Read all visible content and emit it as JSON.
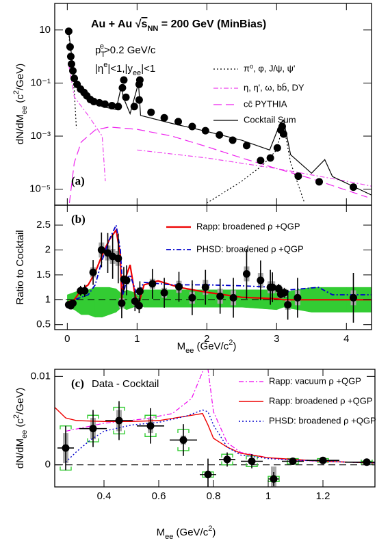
{
  "chart_data": [
    {
      "type": "scatter",
      "panel_label": "(a)",
      "title": [
        "Au + Au  √",
        "s",
        "NN",
        " = 200 GeV (MinBias)"
      ],
      "annotations": [
        [
          "p",
          "T",
          "e",
          ">0.2 GeV/c"
        ],
        [
          "|η",
          "e",
          "|<1,|y",
          "ee",
          "|<1"
        ]
      ],
      "ylabel": [
        "dN/dM",
        "ee",
        " (c",
        "2",
        "/GeV)"
      ],
      "xlim": [
        -0.18,
        4.36
      ],
      "xticks": [
        0,
        1,
        2,
        3,
        4
      ],
      "show_xtick_labels": false,
      "ylim": [
        2.5e-06,
        100
      ],
      "ylog": true,
      "yticks": [
        10,
        {
          "value": 0.1,
          "label": "10⁻¹"
        },
        {
          "value": 0.001,
          "label": "10⁻³"
        },
        {
          "value": 1e-05,
          "label": "10⁻⁵"
        }
      ],
      "series": [
        {
          "kind": "points",
          "color": "#000000",
          "x": [
            0.02,
            0.04,
            0.05,
            0.06,
            0.08,
            0.1,
            0.14,
            0.19,
            0.24,
            0.28,
            0.33,
            0.38,
            0.46,
            0.54,
            0.64,
            0.73,
            0.79,
            0.81,
            0.84,
            0.96,
            1.03,
            1.03,
            1.04,
            1.2,
            1.39,
            1.59,
            1.79,
            1.98,
            2.18,
            2.37,
            2.57,
            2.77,
            2.91,
            3.01,
            3.06,
            3.08,
            3.1,
            3.31,
            3.61,
            4.1
          ],
          "values": [
            8.9,
            2.3,
            1.0,
            0.52,
            0.29,
            0.15,
            0.089,
            0.059,
            0.044,
            0.033,
            0.024,
            0.02,
            0.018,
            0.016,
            0.014,
            0.013,
            0.066,
            0.13,
            0.029,
            0.013,
            0.023,
            0.089,
            0.13,
            0.0079,
            0.0049,
            0.0035,
            0.0023,
            0.0016,
            0.0011,
            0.0007,
            0.00044,
            0.00012,
            0.00015,
            0.00036,
            0.0017,
            0.0023,
            0.0012,
            3.1e-05,
            1.9e-05,
            1.2e-05
          ]
        },
        {
          "kind": "line",
          "name": "π⁰, φ, J/ψ, ψ'",
          "color": "#000000",
          "style": "dotted",
          "x": [
            0.02,
            0.06,
            0.1,
            0.13,
            0.14,
            2.0,
            2.5,
            2.8,
            3.0,
            3.097,
            3.2,
            3.4
          ],
          "values": [
            8,
            0.5,
            0.05,
            0.002,
            null,
            3e-06,
            2e-05,
            8e-05,
            0.0003,
            0.003,
            0.0001,
            3e-06
          ]
        },
        {
          "kind": "line",
          "name": "η, η', ω, bb̄, DY",
          "color": "#ee44ee",
          "style": "dashdot",
          "x": [
            0.02,
            0.1,
            0.3,
            0.5,
            0.545,
            0.56,
            1,
            2,
            3,
            4,
            4.36
          ],
          "values": [
            0.5,
            0.03,
            0.006,
            0.001,
            2e-05,
            null,
            0.0003,
            0.00015,
            6e-05,
            2e-05,
            1.3e-05
          ]
        },
        {
          "kind": "line",
          "name": "cc̄ PYTHIA",
          "color": "#ee22ee",
          "style": "longdash",
          "x": [
            0.03,
            0.1,
            0.2,
            0.4,
            0.6,
            1,
            1.5,
            2,
            2.5,
            3,
            3.5,
            4.3
          ],
          "values": [
            3e-06,
            0.0001,
            0.0006,
            0.0017,
            0.0022,
            0.0018,
            0.001,
            0.0004,
            0.00015,
            6e-05,
            2.5e-05,
            5e-06
          ]
        },
        {
          "kind": "line",
          "name": "Cocktail Sum",
          "color": "#000000",
          "style": "solid",
          "x": [
            0.02,
            0.1,
            0.2,
            0.3,
            0.5,
            0.7,
            0.78,
            0.8,
            0.9,
            1.02,
            1.05,
            1.5,
            2,
            2.5,
            2.9,
            3.05,
            3.1,
            3.2,
            3.5,
            3.69,
            3.8,
            4.36
          ],
          "values": [
            9,
            0.15,
            0.05,
            0.025,
            0.013,
            0.01,
            0.09,
            0.03,
            0.007,
            0.1,
            0.006,
            0.003,
            0.0015,
            0.0007,
            0.0003,
            0.003,
            0.004,
            0.0002,
            4e-05,
            0.00013,
            3e-05,
            6e-06
          ]
        }
      ]
    },
    {
      "type": "scatter",
      "panel_label": "(b)",
      "ylabel": "Ratio to Cocktail",
      "xlabel": [
        "M",
        "ee",
        " (GeV/c",
        "2",
        ")"
      ],
      "xlim": [
        -0.18,
        4.36
      ],
      "xticks": [
        0,
        1,
        2,
        3,
        4
      ],
      "show_xtick_labels": true,
      "ylim": [
        0.4,
        2.9
      ],
      "yticks": [
        0.5,
        1,
        1.5,
        2,
        2.5
      ],
      "hline": 1,
      "series": [
        {
          "kind": "band",
          "color": "#33cc33",
          "x": [
            0,
            0.1,
            0.2,
            0.3,
            0.4,
            0.5,
            0.6,
            0.7,
            0.78,
            0.85,
            0.95,
            1.02,
            1.1,
            1.5,
            2,
            2.5,
            3,
            3.1,
            3.5,
            4,
            4.36
          ],
          "upper": [
            1.1,
            1.15,
            1.2,
            1.2,
            1.25,
            1.25,
            1.25,
            1.22,
            1.12,
            1.2,
            1.15,
            1.08,
            1.2,
            1.2,
            1.2,
            1.2,
            1.2,
            1.15,
            1.25,
            1.25,
            1.25
          ],
          "lower": [
            0.85,
            0.8,
            0.7,
            0.7,
            0.65,
            0.65,
            0.7,
            0.75,
            0.85,
            0.8,
            0.85,
            0.9,
            0.85,
            0.85,
            0.85,
            0.85,
            0.8,
            0.85,
            0.75,
            0.75,
            0.75
          ]
        },
        {
          "kind": "points",
          "color": "#000000",
          "sys_color": "#aaaaaa",
          "x": [
            0.02,
            0.05,
            0.08,
            0.19,
            0.25,
            0.37,
            0.49,
            0.58,
            0.65,
            0.73,
            0.78,
            0.81,
            0.85,
            0.97,
            1.03,
            1.04,
            1.22,
            1.39,
            1.6,
            1.79,
            1.98,
            2.19,
            2.38,
            2.57,
            2.77,
            2.91,
            2.94,
            3.03,
            3.06,
            3.11,
            3.16,
            3.3,
            4.1
          ],
          "values": [
            0.9,
            0.88,
            0.93,
            1.18,
            1.18,
            1.55,
            2.0,
            1.94,
            1.87,
            1.83,
            0.93,
            1.41,
            1.39,
            0.97,
            0.88,
            1.17,
            1.32,
            1.14,
            1.26,
            1.04,
            1.25,
            1.07,
            1.04,
            1.52,
            1.39,
            1.25,
            1.25,
            1.22,
            1.11,
            1.14,
            0.9,
            1.04,
            1.04
          ],
          "errors": [
            0.05,
            0.05,
            0.06,
            0.1,
            0.12,
            0.25,
            0.35,
            0.4,
            0.45,
            0.5,
            0.3,
            0.25,
            0.3,
            0.2,
            0.15,
            0.2,
            0.3,
            0.3,
            0.3,
            0.35,
            0.35,
            0.35,
            0.4,
            0.5,
            0.4,
            0.35,
            0.3,
            0.1,
            0.08,
            0.1,
            0.3,
            0.4,
            0.5
          ],
          "sys": [
            0.03,
            0.03,
            0.04,
            0.05,
            0.05,
            0.1,
            0.15,
            0.15,
            0.15,
            0.15,
            0.1,
            0.08,
            0.08,
            0.08,
            0.06,
            0.08,
            0.1,
            0.1,
            0.12,
            0.12,
            0.15,
            0.15,
            0.15,
            0.15,
            0.15,
            0.12,
            0.12,
            0.08,
            0.08,
            0.08,
            0.1,
            0.15,
            0.15
          ]
        },
        {
          "kind": "line",
          "name": "Rapp: broadened ρ +QGP",
          "color": "#ee0000",
          "style": "solid",
          "width": 2.2,
          "x": [
            0,
            0.1,
            0.2,
            0.3,
            0.4,
            0.5,
            0.6,
            0.7,
            0.76,
            0.78,
            0.8,
            0.9,
            0.97,
            1.02,
            1.1,
            1.3,
            1.6,
            2,
            2.5,
            3,
            3.1,
            3.5,
            4.36
          ],
          "values": [
            0.95,
            1.0,
            1.2,
            1.3,
            1.55,
            1.9,
            2.2,
            2.4,
            1.9,
            1.0,
            1.3,
            1.7,
            1.1,
            0.9,
            1.3,
            1.38,
            1.25,
            1.15,
            1.05,
            1.02,
            1.0,
            1.0,
            1.0
          ]
        },
        {
          "kind": "line",
          "name": "PHSD: broadened ρ +QGP",
          "color": "#0000cc",
          "style": "dashdot",
          "width": 1.8,
          "x": [
            0,
            0.1,
            0.2,
            0.3,
            0.4,
            0.5,
            0.6,
            0.7,
            0.76,
            0.8,
            0.85,
            0.9,
            1.0,
            1.1,
            1.5,
            2,
            2.5,
            3,
            3.05,
            3.1,
            3.2,
            3.6,
            3.8,
            4.36
          ],
          "values": [
            0.9,
            1.0,
            1.05,
            1.1,
            1.3,
            1.8,
            2.2,
            2.5,
            2.0,
            1.1,
            1.4,
            1.5,
            1.1,
            1.35,
            1.3,
            1.3,
            1.28,
            1.25,
            1.1,
            1.08,
            1.2,
            1.25,
            1.1,
            1.1
          ]
        }
      ]
    },
    {
      "type": "scatter",
      "panel_label": "(c)",
      "annotation": "Data - Cocktail",
      "ylabel": [
        "dN/dM",
        "ee",
        " (c",
        "2",
        "/GeV)"
      ],
      "xlabel": [
        "M",
        "ee",
        " (GeV/c",
        "2",
        ")"
      ],
      "xlim": [
        0.22,
        1.39
      ],
      "xticks": [
        0.4,
        0.6,
        0.8,
        1,
        1.2
      ],
      "show_xtick_labels": true,
      "ylim": [
        -0.0025,
        0.0108
      ],
      "yticks": [
        0,
        0.01
      ],
      "hline": 0,
      "series": [
        {
          "kind": "points",
          "color": "#000000",
          "sys_color": "#aaaaaa",
          "cocktail_sys_color": "#33cc33",
          "x": [
            0.26,
            0.36,
            0.455,
            0.57,
            0.69,
            0.78,
            0.85,
            0.94,
            1.02,
            1.09,
            1.2,
            1.36
          ],
          "values": [
            0.0019,
            0.0041,
            0.005,
            0.0044,
            0.0028,
            -0.0011,
            0.0006,
            0.0004,
            -0.0016,
            0.0004,
            0.0005,
            0.0003
          ],
          "xerrors": [
            0.03,
            0.05,
            0.05,
            0.05,
            0.05,
            0.03,
            0.03,
            0.04,
            0.02,
            0.04,
            0.06,
            0.08
          ],
          "errors": [
            0.0025,
            0.0021,
            0.0022,
            0.002,
            0.0018,
            0.0018,
            0.0008,
            0.0008,
            0.0008,
            0.0004,
            0.0003,
            0.0002
          ],
          "sys": [
            0.0017,
            0.0012,
            0.0012,
            0.0008,
            0.0005,
            0.0002,
            0.0002,
            0.0002,
            0.0014,
            0.0002,
            0.0002,
            0.0001
          ],
          "cocktail_sys": [
            0.0025,
            0.0015,
            0.0015,
            0.0012,
            0.0012,
            0.0003,
            0.0006,
            0.0006,
            0.0003,
            0.0003,
            0.0002,
            0.0001
          ]
        },
        {
          "kind": "line",
          "name": "Rapp: vacuum ρ +QGP",
          "color": "#ee00ee",
          "style": "dashdot",
          "width": 1.2,
          "x": [
            0.26,
            0.4,
            0.55,
            0.65,
            0.72,
            0.76,
            0.775,
            0.8,
            0.85,
            0.9,
            1.0,
            1.1,
            1.2,
            1.39
          ],
          "values": [
            0.0038,
            0.0047,
            0.0052,
            0.0058,
            0.0075,
            0.0105,
            0.012,
            0.006,
            0.0025,
            0.0014,
            0.0008,
            0.0005,
            0.0004,
            0.0002
          ]
        },
        {
          "kind": "line",
          "name": "Rapp: broadened ρ +QGP",
          "color": "#ee0000",
          "style": "solid",
          "width": 1.4,
          "x": [
            0.22,
            0.26,
            0.3,
            0.4,
            0.5,
            0.6,
            0.7,
            0.76,
            0.78,
            0.8,
            0.85,
            0.9,
            1.0,
            1.2,
            1.39
          ],
          "values": [
            0.0065,
            0.0053,
            0.005,
            0.0049,
            0.0049,
            0.005,
            0.0055,
            0.0058,
            0.0045,
            0.003,
            0.002,
            0.0013,
            0.0008,
            0.0004,
            0.0002
          ]
        },
        {
          "kind": "line",
          "name": "PHSD: broadened ρ +QGP",
          "color": "#0000cc",
          "style": "dotted",
          "width": 1.4,
          "x": [
            0.26,
            0.3,
            0.35,
            0.4,
            0.5,
            0.6,
            0.7,
            0.76,
            0.78,
            0.8,
            0.85,
            0.9,
            1.0,
            1.2,
            1.39
          ],
          "values": [
            0.0003,
            0.0015,
            0.0028,
            0.0038,
            0.0045,
            0.0048,
            0.0055,
            0.0062,
            0.006,
            0.0045,
            0.002,
            0.0011,
            0.0007,
            0.0004,
            0.0002
          ]
        }
      ]
    }
  ]
}
